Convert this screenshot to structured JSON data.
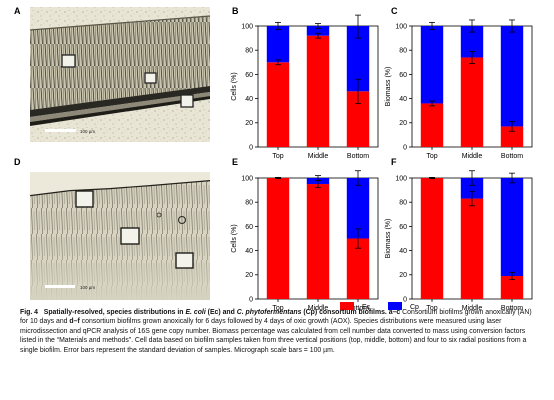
{
  "panels": {
    "a": {
      "letter": "A",
      "scalebar_label": "100 µm"
    },
    "b": {
      "letter": "B"
    },
    "c": {
      "letter": "C"
    },
    "d": {
      "letter": "D",
      "scalebar_label": "100 µm"
    },
    "e": {
      "letter": "E"
    },
    "f": {
      "letter": "F"
    }
  },
  "legend": {
    "items": [
      {
        "label": "Ec",
        "color": "#ff0000"
      },
      {
        "label": "Cp",
        "color": "#0000ff"
      }
    ]
  },
  "chart_data": [
    {
      "panel": "B",
      "type": "bar",
      "stacked": true,
      "categories": [
        "Top",
        "Middle",
        "Bottom"
      ],
      "ylabel": "Cells (%)",
      "ylim": [
        0,
        100
      ],
      "yticks": [
        0,
        20,
        40,
        60,
        80,
        100
      ],
      "series": [
        {
          "name": "Ec",
          "color": "#ff0000",
          "values": [
            70,
            92,
            46
          ],
          "error": [
            2,
            2,
            10
          ]
        },
        {
          "name": "Cp",
          "color": "#0000ff",
          "values": [
            30,
            8,
            54
          ],
          "error": [
            3,
            2,
            10
          ]
        }
      ]
    },
    {
      "panel": "C",
      "type": "bar",
      "stacked": true,
      "categories": [
        "Top",
        "Middle",
        "Bottom"
      ],
      "ylabel": "Biomass (%)",
      "ylim": [
        0,
        100
      ],
      "yticks": [
        0,
        20,
        40,
        60,
        80,
        100
      ],
      "series": [
        {
          "name": "Ec",
          "color": "#ff0000",
          "values": [
            36,
            74,
            17
          ],
          "error": [
            2,
            5,
            4
          ]
        },
        {
          "name": "Cp",
          "color": "#0000ff",
          "values": [
            64,
            26,
            83
          ],
          "error": [
            3,
            5,
            5
          ]
        }
      ]
    },
    {
      "panel": "E",
      "type": "bar",
      "stacked": true,
      "categories": [
        "Top",
        "Middle",
        "Bottom"
      ],
      "ylabel": "Cells (%)",
      "ylim": [
        0,
        100
      ],
      "yticks": [
        0,
        20,
        40,
        60,
        80,
        100
      ],
      "series": [
        {
          "name": "Ec",
          "color": "#ff0000",
          "values": [
            100,
            95,
            50
          ],
          "error": [
            0.5,
            3,
            8
          ]
        },
        {
          "name": "Cp",
          "color": "#0000ff",
          "values": [
            0,
            5,
            50
          ],
          "error": [
            0.5,
            2,
            6
          ]
        }
      ]
    },
    {
      "panel": "F",
      "type": "bar",
      "stacked": true,
      "categories": [
        "Top",
        "Middle",
        "Bottom"
      ],
      "ylabel": "Biomass (%)",
      "ylim": [
        0,
        100
      ],
      "yticks": [
        0,
        20,
        40,
        60,
        80,
        100
      ],
      "series": [
        {
          "name": "Ec",
          "color": "#ff0000",
          "values": [
            100,
            83,
            19
          ],
          "error": [
            0.5,
            6,
            3
          ]
        },
        {
          "name": "Cp",
          "color": "#0000ff",
          "values": [
            0,
            17,
            81
          ],
          "error": [
            0.5,
            6,
            4
          ]
        }
      ]
    }
  ],
  "caption": {
    "fig_label": "Fig. 4",
    "title_1": "Spatially-resolved, species distributions in ",
    "title_ec": "E. coli",
    "title_2": " (Ec) and ",
    "title_cp": "C. phytofermentans",
    "title_3": " (Cp) consortium biofilms.",
    "panels_ac": "a–c",
    "text_1": " Consortium biofilms grown anoxically (AN) for 10 days and ",
    "panels_df": "d–f",
    "text_2": " consortium biofilms grown anoxically for 6 days followed by 4 days of oxic growth (AOX). Species distributions were measured using laser microdissection and qPCR analysis of 16S gene copy number. Biomass percentage was calculated from cell number data converted to mass using conversion factors listed in the “Materials and methods”. Cell data based on biofilm samples taken from three vertical positions (top, middle, bottom) and four to six radial positions from a single biofilm. Error bars represent the standard deviation of samples. Micrograph scale bars = 100 µm."
  }
}
